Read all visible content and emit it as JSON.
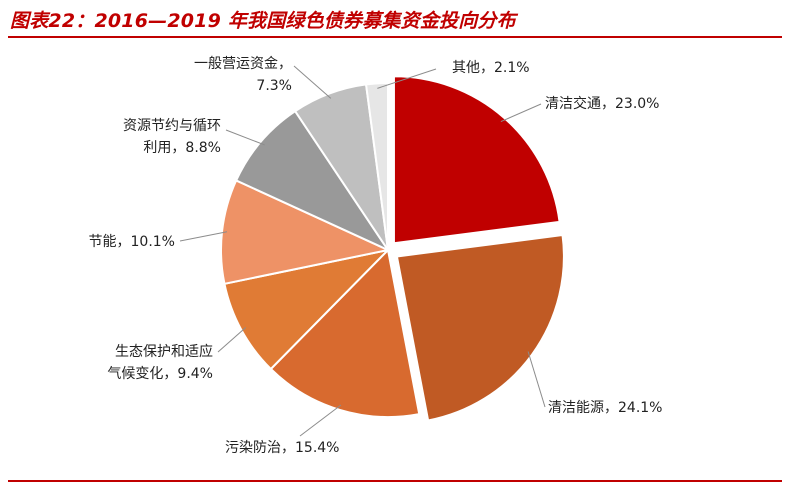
{
  "title": "图表22：2016—2019 年我国绿色债券募集资金投向分布",
  "colors": {
    "accent": "#c00000"
  },
  "chart_data": {
    "type": "pie",
    "title": "图表22：2016—2019 年我国绿色债券募集资金投向分布",
    "slices": [
      {
        "label": "清洁交通",
        "value": 23.0,
        "value_text": "23.0%",
        "color": "#c00000",
        "label_lines": [
          "清洁交通，23.0%"
        ]
      },
      {
        "label": "清洁能源",
        "value": 24.1,
        "value_text": "24.1%",
        "color": "#c05a24",
        "label_lines": [
          "清洁能源，24.1%"
        ]
      },
      {
        "label": "污染防治",
        "value": 15.4,
        "value_text": "15.4%",
        "color": "#d86a2f",
        "label_lines": [
          "污染防治，15.4%"
        ]
      },
      {
        "label": "生态保护和适应气候变化",
        "value": 9.4,
        "value_text": "9.4%",
        "color": "#e07b35",
        "label_lines": [
          "生态保护和适应",
          "气候变化，9.4%"
        ]
      },
      {
        "label": "节能",
        "value": 10.1,
        "value_text": "10.1%",
        "color": "#ee9266",
        "label_lines": [
          "节能，10.1%"
        ]
      },
      {
        "label": "资源节约与循环利用",
        "value": 8.8,
        "value_text": "8.8%",
        "color": "#999999",
        "label_lines": [
          "资源节约与循环",
          "利用，8.8%"
        ]
      },
      {
        "label": "一般营运资金",
        "value": 7.3,
        "value_text": "7.3%",
        "color": "#bfbfbf",
        "label_lines": [
          "一般营运资金，",
          "7.3%"
        ]
      },
      {
        "label": "其他",
        "value": 2.1,
        "value_text": "2.1%",
        "color": "#e6e6e6",
        "label_lines": [
          "其他，2.1%"
        ]
      }
    ],
    "start_angle": "12 o'clock",
    "direction": "clockwise",
    "exploded_slices": [
      "清洁交通",
      "清洁能源"
    ]
  }
}
